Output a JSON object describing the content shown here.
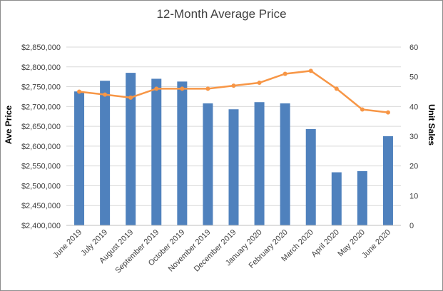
{
  "chart_data": {
    "type": "bar",
    "title": "12-Month Average Price",
    "ylabel": "Ave Price",
    "y2label": "Unit Sales",
    "categories": [
      "June 2019",
      "July 2019",
      "August 2019",
      "September 2019",
      "October 2019",
      "November 2019",
      "December 2019",
      "January 2020",
      "February 2020",
      "March 2020",
      "April 2020",
      "May 2020",
      "June 2020"
    ],
    "series": [
      {
        "type": "bar",
        "axis": "left",
        "color": "#4f81bd",
        "values": [
          2738000,
          2765000,
          2785000,
          2770000,
          2763000,
          2708000,
          2693000,
          2711000,
          2708000,
          2643000,
          2534000,
          2537000,
          2625000
        ]
      },
      {
        "type": "line",
        "axis": "right",
        "color": "#f79646",
        "values": [
          45,
          44,
          43,
          46,
          46,
          46,
          47,
          48,
          51,
          52,
          46,
          39,
          38
        ]
      }
    ],
    "ylim": [
      2400000,
      2850000
    ],
    "y2lim": [
      0,
      60
    ],
    "yticks": [
      "$2,400,000",
      "$2,450,000",
      "$2,500,000",
      "$2,550,000",
      "$2,600,000",
      "$2,650,000",
      "$2,700,000",
      "$2,750,000",
      "$2,800,000",
      "$2,850,000"
    ],
    "y2ticks": [
      "0",
      "10",
      "20",
      "30",
      "40",
      "50",
      "60"
    ],
    "grid": true
  }
}
